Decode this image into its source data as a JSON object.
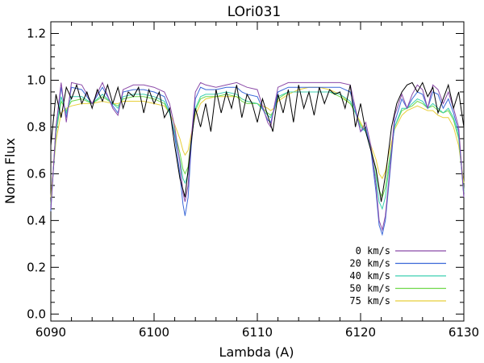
{
  "chart_data": {
    "type": "line",
    "title": "LOri031",
    "xlabel": "Lambda (A)",
    "ylabel": "Norm Flux",
    "xlim": [
      6090,
      6130
    ],
    "ylim": [
      -0.03,
      1.25
    ],
    "x_ticks": [
      6090,
      6100,
      6110,
      6120,
      6130
    ],
    "y_ticks": [
      0.0,
      0.2,
      0.4,
      0.6,
      0.8,
      1.0,
      1.2
    ],
    "x_tick_labels": [
      "6090",
      "6100",
      "6110",
      "6120",
      "6130"
    ],
    "y_tick_labels": [
      "0.0",
      "0.2",
      "0.4",
      "0.6",
      "0.8",
      "1.0",
      "1.2"
    ],
    "legend_position": "bottom-right",
    "observed": {
      "color": "#000000",
      "x": [
        6090.0,
        6090.5,
        6091.0,
        6091.5,
        6092.0,
        6092.5,
        6093.0,
        6093.5,
        6094.0,
        6094.5,
        6095.0,
        6095.5,
        6096.0,
        6096.5,
        6097.0,
        6097.5,
        6098.0,
        6098.5,
        6099.0,
        6099.5,
        6100.0,
        6100.5,
        6101.0,
        6101.5,
        6102.0,
        6102.5,
        6103.0,
        6103.5,
        6104.0,
        6104.5,
        6105.0,
        6105.5,
        6106.0,
        6106.5,
        6107.0,
        6107.5,
        6108.0,
        6108.5,
        6109.0,
        6109.5,
        6110.0,
        6110.5,
        6111.0,
        6111.5,
        6112.0,
        6112.5,
        6113.0,
        6113.5,
        6114.0,
        6114.5,
        6115.0,
        6115.5,
        6116.0,
        6116.5,
        6117.0,
        6117.5,
        6118.0,
        6118.5,
        6119.0,
        6119.5,
        6120.0,
        6120.5,
        6121.0,
        6121.5,
        6122.0,
        6122.5,
        6123.0,
        6123.5,
        6124.0,
        6124.5,
        6125.0,
        6125.5,
        6126.0,
        6126.5,
        6127.0,
        6127.5,
        6128.0,
        6128.5,
        6129.0,
        6129.5,
        6130.0
      ],
      "y": [
        0.72,
        0.94,
        0.84,
        0.97,
        0.92,
        0.98,
        0.9,
        0.95,
        0.88,
        0.96,
        0.91,
        0.98,
        0.9,
        0.97,
        0.88,
        0.95,
        0.93,
        0.97,
        0.86,
        0.96,
        0.9,
        0.95,
        0.84,
        0.88,
        0.72,
        0.58,
        0.5,
        0.7,
        0.88,
        0.8,
        0.9,
        0.78,
        0.96,
        0.86,
        0.95,
        0.88,
        0.98,
        0.84,
        0.94,
        0.9,
        0.82,
        0.92,
        0.85,
        0.78,
        0.94,
        0.86,
        0.96,
        0.82,
        0.98,
        0.88,
        0.95,
        0.85,
        0.97,
        0.9,
        0.96,
        0.94,
        0.95,
        0.88,
        0.98,
        0.8,
        0.9,
        0.78,
        0.7,
        0.62,
        0.48,
        0.62,
        0.8,
        0.9,
        0.95,
        0.98,
        0.99,
        0.95,
        0.99,
        0.93,
        0.97,
        0.86,
        0.92,
        0.98,
        0.88,
        0.95,
        0.8
      ]
    },
    "model_x": [
      6090,
      6090.5,
      6091,
      6091.5,
      6092,
      6093,
      6094,
      6095,
      6096,
      6096.5,
      6097,
      6098,
      6099,
      6100,
      6101,
      6101.5,
      6102,
      6102.5,
      6102.8,
      6103,
      6103.3,
      6103.6,
      6104,
      6104.5,
      6105,
      6106,
      6107,
      6108,
      6108.5,
      6109,
      6110,
      6111,
      6111.3,
      6111.6,
      6112,
      6113,
      6114,
      6115,
      6116,
      6117,
      6118,
      6119,
      6119.5,
      6120,
      6120.5,
      6121,
      6121.5,
      6121.8,
      6122.1,
      6122.4,
      6122.8,
      6123.3,
      6124,
      6124.5,
      6125,
      6125.5,
      6126,
      6126.5,
      6127,
      6127.5,
      6128,
      6128.5,
      6129,
      6129.5,
      6130
    ],
    "series": [
      {
        "name": "0 km/s",
        "color": "#8b4aa8",
        "y": [
          0.45,
          0.8,
          0.99,
          0.82,
          0.99,
          0.98,
          0.9,
          0.99,
          0.88,
          0.85,
          0.96,
          0.98,
          0.98,
          0.97,
          0.95,
          0.9,
          0.8,
          0.65,
          0.52,
          0.48,
          0.55,
          0.75,
          0.95,
          0.99,
          0.98,
          0.97,
          0.98,
          0.99,
          0.98,
          0.97,
          0.96,
          0.82,
          0.8,
          0.88,
          0.97,
          0.99,
          0.99,
          0.99,
          0.99,
          0.99,
          0.99,
          0.98,
          0.88,
          0.78,
          0.82,
          0.72,
          0.55,
          0.4,
          0.36,
          0.42,
          0.6,
          0.85,
          0.94,
          0.88,
          0.94,
          0.98,
          0.96,
          0.88,
          0.98,
          0.96,
          0.9,
          0.95,
          0.88,
          0.8,
          0.5
        ]
      },
      {
        "name": "20 km/s",
        "color": "#3a68d8",
        "y": [
          0.44,
          0.8,
          0.97,
          0.84,
          0.97,
          0.96,
          0.9,
          0.97,
          0.89,
          0.86,
          0.95,
          0.96,
          0.96,
          0.95,
          0.93,
          0.87,
          0.76,
          0.6,
          0.47,
          0.42,
          0.5,
          0.72,
          0.92,
          0.97,
          0.96,
          0.96,
          0.97,
          0.97,
          0.95,
          0.94,
          0.93,
          0.83,
          0.82,
          0.87,
          0.95,
          0.97,
          0.97,
          0.97,
          0.97,
          0.97,
          0.97,
          0.95,
          0.87,
          0.78,
          0.8,
          0.7,
          0.52,
          0.38,
          0.34,
          0.4,
          0.58,
          0.82,
          0.92,
          0.88,
          0.92,
          0.95,
          0.94,
          0.88,
          0.95,
          0.94,
          0.88,
          0.92,
          0.86,
          0.78,
          0.5
        ]
      },
      {
        "name": "40 km/s",
        "color": "#3ccfb0",
        "y": [
          0.46,
          0.78,
          0.93,
          0.86,
          0.93,
          0.93,
          0.9,
          0.94,
          0.9,
          0.88,
          0.93,
          0.94,
          0.94,
          0.93,
          0.91,
          0.86,
          0.77,
          0.66,
          0.58,
          0.56,
          0.6,
          0.74,
          0.88,
          0.93,
          0.94,
          0.94,
          0.95,
          0.94,
          0.92,
          0.91,
          0.9,
          0.85,
          0.84,
          0.87,
          0.93,
          0.95,
          0.95,
          0.95,
          0.95,
          0.95,
          0.94,
          0.91,
          0.86,
          0.8,
          0.78,
          0.7,
          0.58,
          0.48,
          0.45,
          0.5,
          0.64,
          0.8,
          0.88,
          0.88,
          0.9,
          0.92,
          0.91,
          0.88,
          0.9,
          0.88,
          0.86,
          0.88,
          0.84,
          0.76,
          0.52
        ]
      },
      {
        "name": "50 km/s",
        "color": "#6fd84a",
        "y": [
          0.47,
          0.77,
          0.91,
          0.87,
          0.91,
          0.92,
          0.9,
          0.93,
          0.9,
          0.89,
          0.92,
          0.93,
          0.93,
          0.92,
          0.9,
          0.86,
          0.78,
          0.69,
          0.62,
          0.6,
          0.63,
          0.75,
          0.87,
          0.92,
          0.93,
          0.93,
          0.94,
          0.93,
          0.91,
          0.9,
          0.9,
          0.86,
          0.85,
          0.87,
          0.92,
          0.95,
          0.95,
          0.95,
          0.95,
          0.95,
          0.93,
          0.9,
          0.86,
          0.81,
          0.78,
          0.71,
          0.61,
          0.53,
          0.5,
          0.54,
          0.66,
          0.8,
          0.87,
          0.88,
          0.89,
          0.91,
          0.9,
          0.88,
          0.89,
          0.87,
          0.86,
          0.87,
          0.83,
          0.75,
          0.53
        ]
      },
      {
        "name": "75 km/s",
        "color": "#e8cf3a",
        "y": [
          0.5,
          0.74,
          0.86,
          0.88,
          0.89,
          0.9,
          0.9,
          0.91,
          0.9,
          0.9,
          0.91,
          0.91,
          0.91,
          0.9,
          0.89,
          0.86,
          0.81,
          0.75,
          0.7,
          0.68,
          0.7,
          0.77,
          0.85,
          0.9,
          0.92,
          0.93,
          0.93,
          0.93,
          0.92,
          0.91,
          0.9,
          0.88,
          0.87,
          0.88,
          0.91,
          0.94,
          0.96,
          0.97,
          0.97,
          0.96,
          0.94,
          0.9,
          0.86,
          0.82,
          0.78,
          0.72,
          0.66,
          0.6,
          0.58,
          0.61,
          0.7,
          0.79,
          0.85,
          0.87,
          0.88,
          0.89,
          0.88,
          0.87,
          0.87,
          0.85,
          0.84,
          0.84,
          0.8,
          0.72,
          0.56
        ]
      }
    ]
  }
}
